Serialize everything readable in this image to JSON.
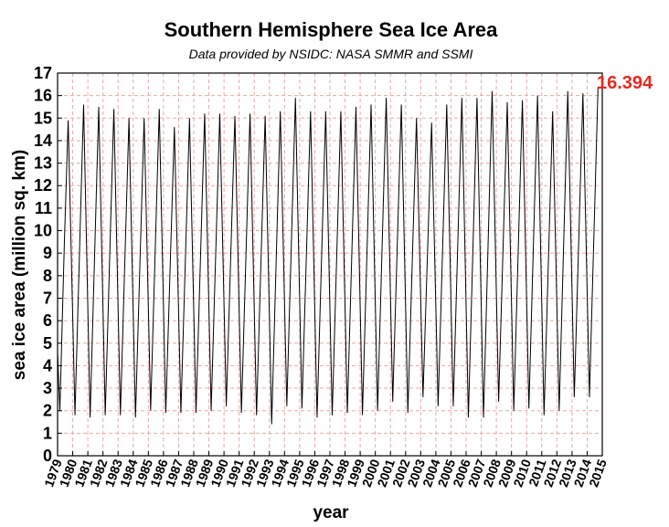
{
  "chart_data": {
    "type": "line",
    "title": "Southern Hemisphere Sea Ice Area",
    "subtitle": "Data provided by NSIDC: NASA SMMR and SSMI",
    "xlabel": "year",
    "ylabel": "sea ice area (million sq. km)",
    "xlim": [
      1979,
      2015
    ],
    "ylim": [
      0,
      17
    ],
    "grid": true,
    "grid_color": "#e8a8a8",
    "line_color": "#000000",
    "latest_value_label": "16.394",
    "latest_value_color": "#e8281e",
    "x_ticks": [
      "1979",
      "1980",
      "1981",
      "1982",
      "1983",
      "1984",
      "1985",
      "1986",
      "1987",
      "1988",
      "1989",
      "1990",
      "1991",
      "1992",
      "1993",
      "1994",
      "1995",
      "1996",
      "1997",
      "1998",
      "1999",
      "2000",
      "2001",
      "2002",
      "2003",
      "2004",
      "2005",
      "2006",
      "2007",
      "2008",
      "2009",
      "2010",
      "2011",
      "2012",
      "2013",
      "2014",
      "2015"
    ],
    "y_ticks": [
      "0",
      "1",
      "2",
      "3",
      "4",
      "5",
      "6",
      "7",
      "8",
      "9",
      "10",
      "11",
      "12",
      "13",
      "14",
      "15",
      "16",
      "17"
    ],
    "series": [
      {
        "x": [
          1979.0,
          1979.15,
          1979.45,
          1979.7,
          1980.15,
          1980.72,
          1981.15,
          1981.72,
          1982.15,
          1982.72,
          1983.15,
          1983.72,
          1984.15,
          1984.72,
          1985.15,
          1985.72,
          1986.15,
          1986.72,
          1987.15,
          1987.72,
          1988.15,
          1988.72,
          1989.15,
          1989.72,
          1990.15,
          1990.72,
          1991.15,
          1991.72,
          1992.15,
          1992.72,
          1993.15,
          1993.72,
          1994.15,
          1994.72,
          1995.15,
          1995.72,
          1996.15,
          1996.72,
          1997.15,
          1997.72,
          1998.15,
          1998.72,
          1999.15,
          1999.72,
          2000.15,
          2000.72,
          2001.15,
          2001.72,
          2002.15,
          2002.72,
          2003.15,
          2003.72,
          2004.15,
          2004.72,
          2005.15,
          2005.72,
          2006.15,
          2006.72,
          2007.15,
          2007.72,
          2008.15,
          2008.72,
          2009.15,
          2009.72,
          2010.15,
          2010.72,
          2011.15,
          2011.72,
          2012.15,
          2012.72,
          2013.15,
          2013.72,
          2014.15,
          2014.72
        ],
        "y": [
          4.6,
          2.0,
          9.5,
          14.9,
          1.8,
          15.6,
          1.7,
          15.5,
          1.8,
          15.4,
          1.8,
          15.0,
          1.7,
          15.0,
          2.0,
          15.4,
          1.9,
          14.6,
          1.9,
          15.0,
          1.9,
          15.2,
          2.0,
          15.2,
          2.2,
          15.1,
          1.9,
          15.2,
          1.8,
          15.1,
          1.4,
          15.3,
          2.2,
          15.9,
          2.1,
          15.3,
          1.7,
          15.3,
          1.8,
          15.3,
          1.9,
          15.5,
          1.8,
          15.6,
          2.0,
          15.9,
          2.4,
          15.6,
          1.9,
          15.0,
          2.6,
          14.8,
          2.2,
          15.6,
          2.2,
          15.9,
          1.7,
          15.9,
          1.7,
          16.2,
          2.4,
          15.7,
          2.0,
          15.8,
          2.1,
          16.0,
          1.8,
          15.3,
          2.0,
          16.2,
          2.6,
          16.1,
          2.6,
          16.394
        ]
      }
    ]
  }
}
